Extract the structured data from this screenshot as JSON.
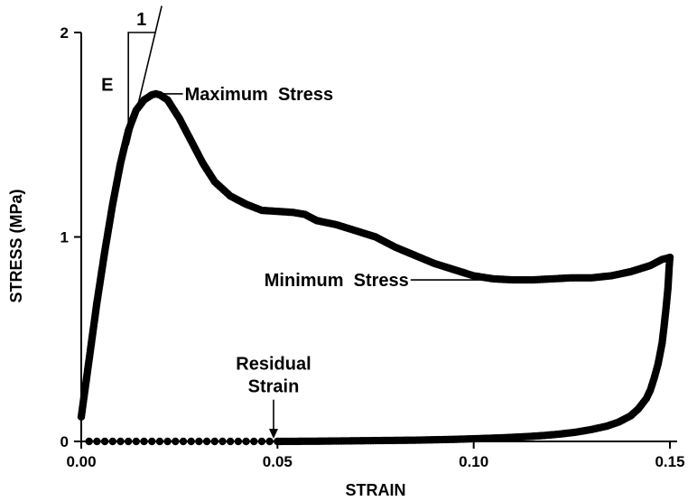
{
  "chart_data": {
    "type": "scatter",
    "title": "",
    "xlabel": "STRAIN",
    "ylabel": "STRESS (MPa)",
    "xlim": [
      0,
      0.15
    ],
    "ylim": [
      0,
      2
    ],
    "xticks": [
      {
        "value": 0,
        "label": "0.00"
      },
      {
        "value": 0.05,
        "label": "0.05"
      },
      {
        "value": 0.1,
        "label": "0.10"
      },
      {
        "value": 0.15,
        "label": "0.15"
      }
    ],
    "yticks": [
      {
        "value": 0,
        "label": "0"
      },
      {
        "value": 1,
        "label": "1"
      },
      {
        "value": 2,
        "label": "2"
      }
    ],
    "grid": false,
    "marker_color": "#000000",
    "loading_curve": {
      "x": [
        0,
        0.002,
        0.004,
        0.006,
        0.008,
        0.01,
        0.012,
        0.014,
        0.016,
        0.018,
        0.019,
        0.02,
        0.022,
        0.025,
        0.028,
        0.031,
        0.034,
        0.038,
        0.042,
        0.046,
        0.05,
        0.054,
        0.057,
        0.06,
        0.065,
        0.07,
        0.075,
        0.08,
        0.085,
        0.09,
        0.095,
        0.1,
        0.105,
        0.11,
        0.115,
        0.12,
        0.125,
        0.13,
        0.135,
        0.14,
        0.145,
        0.148,
        0.15
      ],
      "y": [
        0.12,
        0.4,
        0.68,
        0.93,
        1.16,
        1.36,
        1.52,
        1.62,
        1.67,
        1.695,
        1.7,
        1.695,
        1.67,
        1.58,
        1.47,
        1.36,
        1.27,
        1.2,
        1.16,
        1.13,
        1.125,
        1.12,
        1.11,
        1.08,
        1.06,
        1.03,
        1.0,
        0.95,
        0.91,
        0.87,
        0.84,
        0.81,
        0.795,
        0.79,
        0.79,
        0.795,
        0.8,
        0.8,
        0.81,
        0.83,
        0.86,
        0.89,
        0.9
      ]
    },
    "unloading_curve": {
      "x": [
        0.15,
        0.1498,
        0.1495,
        0.149,
        0.1485,
        0.148,
        0.147,
        0.146,
        0.145,
        0.144,
        0.142,
        0.14,
        0.137,
        0.134,
        0.13,
        0.126,
        0.122,
        0.118,
        0.114,
        0.11,
        0.105,
        0.1,
        0.095,
        0.09,
        0.085,
        0.08,
        0.075,
        0.07,
        0.065,
        0.06,
        0.055,
        0.05
      ],
      "y": [
        0.9,
        0.85,
        0.75,
        0.65,
        0.56,
        0.48,
        0.38,
        0.31,
        0.25,
        0.21,
        0.16,
        0.125,
        0.095,
        0.075,
        0.058,
        0.045,
        0.036,
        0.029,
        0.024,
        0.02,
        0.016,
        0.013,
        0.01,
        0.008,
        0.006,
        0.005,
        0.004,
        0.003,
        0.002,
        0.001,
        0.0005,
        0.0
      ]
    },
    "baseline_x": [
      0.002,
      0.004,
      0.006,
      0.008,
      0.01,
      0.012,
      0.014,
      0.016,
      0.018,
      0.02,
      0.022,
      0.024,
      0.026,
      0.028,
      0.03,
      0.032,
      0.034,
      0.036,
      0.038,
      0.04,
      0.042,
      0.044,
      0.046,
      0.048
    ],
    "annotations": {
      "slope_run": "1",
      "slope_label": "E",
      "maximum_stress": "Maximum  Stress",
      "minimum_stress": "Minimum  Stress",
      "residual_strain_line1": "Residual",
      "residual_strain_line2": "Strain"
    },
    "annotation_targets": {
      "maximum_stress": {
        "x": 0.019,
        "y": 1.7
      },
      "minimum_stress": {
        "x": 0.112,
        "y": 0.79
      },
      "residual_strain": {
        "x": 0.049,
        "y": 0.0
      }
    },
    "modulus_line": {
      "x0": 0.012,
      "y0": 1.45,
      "x1": 0.0205,
      "y1": 2.13
    }
  }
}
